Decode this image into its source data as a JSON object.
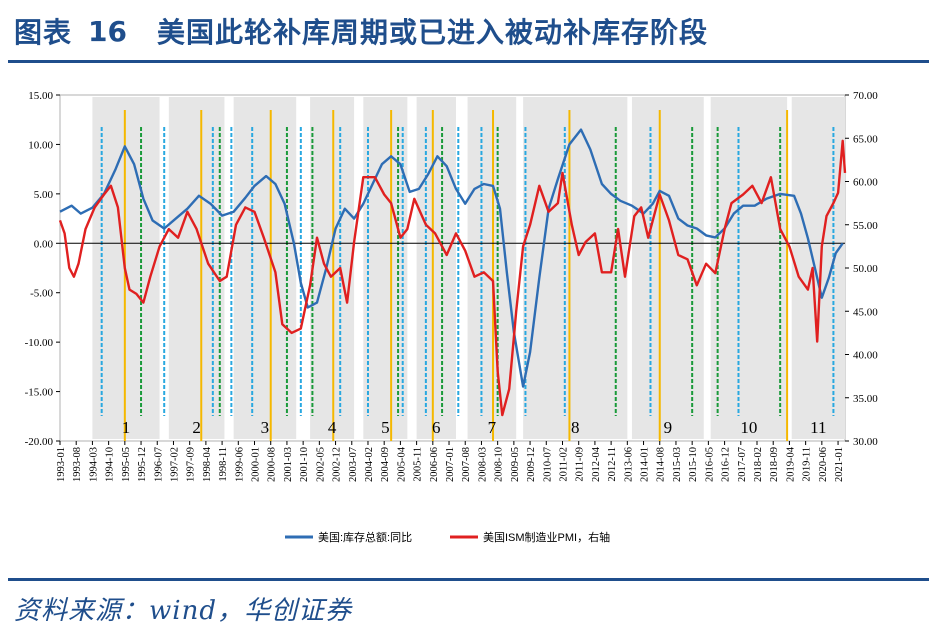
{
  "header": {
    "figure_label": "图表",
    "figure_number": "16",
    "title": "美国此轮补库周期或已进入被动补库存阶段"
  },
  "footer": {
    "source": "资料来源：wind，华创证券"
  },
  "colors": {
    "brand": "#1f4e8c",
    "inventory": "#2e6db4",
    "pmi": "#e02020",
    "cyan_line": "#29a8e0",
    "orange_line": "#f5b800",
    "green_line": "#1a9a3a",
    "shade": "#e6e6e6"
  },
  "chart_data": {
    "type": "line",
    "title": "",
    "x_start": "1993-01",
    "x_end": "2021-04",
    "x_tick_labels": [
      "1993-01",
      "1993-08",
      "1994-03",
      "1994-10",
      "1995-05",
      "1995-12",
      "1996-07",
      "1997-02",
      "1997-09",
      "1998-04",
      "1998-11",
      "1999-06",
      "2000-01",
      "2000-08",
      "2001-03",
      "2001-10",
      "2002-05",
      "2002-12",
      "2003-07",
      "2004-02",
      "2004-09",
      "2005-04",
      "2005-11",
      "2006-06",
      "2007-01",
      "2007-08",
      "2008-03",
      "2008-10",
      "2009-05",
      "2009-12",
      "2010-07",
      "2011-02",
      "2011-09",
      "2012-04",
      "2012-11",
      "2013-06",
      "2014-01",
      "2014-08",
      "2015-03",
      "2015-10",
      "2016-05",
      "2016-12",
      "2017-07",
      "2018-02",
      "2018-09",
      "2019-04",
      "2019-11",
      "2020-06",
      "2021-01"
    ],
    "y_left": {
      "min": -20,
      "max": 15,
      "ticks": [
        "15.00",
        "10.00",
        "5.00",
        "0.00",
        "-5.00",
        "-10.00",
        "-15.00",
        "-20.00"
      ]
    },
    "y_right": {
      "min": 30,
      "max": 70,
      "ticks": [
        "70.00",
        "65.00",
        "60.00",
        "55.00",
        "50.00",
        "45.00",
        "40.00",
        "35.00",
        "30.00"
      ]
    },
    "legend": {
      "placement": "bottom-center"
    },
    "series": [
      {
        "name": "美国:库存总额:同比",
        "axis": "left",
        "points": [
          [
            "1993-01",
            3.2
          ],
          [
            "1993-06",
            3.8
          ],
          [
            "1993-10",
            3.0
          ],
          [
            "1994-03",
            3.6
          ],
          [
            "1994-08",
            5.0
          ],
          [
            "1995-01",
            7.5
          ],
          [
            "1995-05",
            9.8
          ],
          [
            "1995-09",
            8.0
          ],
          [
            "1996-01",
            4.5
          ],
          [
            "1996-05",
            2.3
          ],
          [
            "1996-10",
            1.5
          ],
          [
            "1997-03",
            2.5
          ],
          [
            "1997-08",
            3.5
          ],
          [
            "1998-01",
            4.8
          ],
          [
            "1998-06",
            4.0
          ],
          [
            "1998-11",
            2.8
          ],
          [
            "1999-04",
            3.2
          ],
          [
            "1999-09",
            4.6
          ],
          [
            "2000-01",
            5.8
          ],
          [
            "2000-06",
            6.8
          ],
          [
            "2000-10",
            6.0
          ],
          [
            "2001-02",
            4.0
          ],
          [
            "2001-06",
            0.0
          ],
          [
            "2001-09",
            -4.0
          ],
          [
            "2001-12",
            -6.5
          ],
          [
            "2002-04",
            -6.0
          ],
          [
            "2002-08",
            -2.5
          ],
          [
            "2002-12",
            1.5
          ],
          [
            "2003-04",
            3.5
          ],
          [
            "2003-08",
            2.5
          ],
          [
            "2003-12",
            4.0
          ],
          [
            "2004-04",
            6.0
          ],
          [
            "2004-08",
            8.0
          ],
          [
            "2004-12",
            8.8
          ],
          [
            "2005-04",
            8.0
          ],
          [
            "2005-08",
            5.2
          ],
          [
            "2005-12",
            5.5
          ],
          [
            "2006-04",
            7.0
          ],
          [
            "2006-08",
            8.8
          ],
          [
            "2006-12",
            7.8
          ],
          [
            "2007-04",
            5.5
          ],
          [
            "2007-08",
            4.0
          ],
          [
            "2007-12",
            5.5
          ],
          [
            "2008-04",
            6.0
          ],
          [
            "2008-08",
            5.8
          ],
          [
            "2008-11",
            3.5
          ],
          [
            "2009-02",
            -3.0
          ],
          [
            "2009-05",
            -9.0
          ],
          [
            "2009-09",
            -14.5
          ],
          [
            "2009-12",
            -11.0
          ],
          [
            "2010-04",
            -3.5
          ],
          [
            "2010-08",
            3.5
          ],
          [
            "2010-12",
            6.5
          ],
          [
            "2011-05",
            10.0
          ],
          [
            "2011-10",
            11.5
          ],
          [
            "2012-02",
            9.5
          ],
          [
            "2012-07",
            6.0
          ],
          [
            "2012-11",
            5.0
          ],
          [
            "2013-03",
            4.3
          ],
          [
            "2013-08",
            3.8
          ],
          [
            "2014-01",
            3.0
          ],
          [
            "2014-05",
            4.0
          ],
          [
            "2014-08",
            5.3
          ],
          [
            "2014-12",
            4.8
          ],
          [
            "2015-04",
            2.5
          ],
          [
            "2015-08",
            1.8
          ],
          [
            "2015-12",
            1.5
          ],
          [
            "2016-04",
            0.8
          ],
          [
            "2016-08",
            0.6
          ],
          [
            "2016-12",
            1.5
          ],
          [
            "2017-04",
            3.0
          ],
          [
            "2017-08",
            3.8
          ],
          [
            "2018-01",
            3.8
          ],
          [
            "2018-06",
            4.5
          ],
          [
            "2018-12",
            5.0
          ],
          [
            "2019-06",
            4.8
          ],
          [
            "2019-09",
            3.0
          ],
          [
            "2019-12",
            0.5
          ],
          [
            "2020-03",
            -2.5
          ],
          [
            "2020-06",
            -5.5
          ],
          [
            "2020-09",
            -3.5
          ],
          [
            "2020-12",
            -1.0
          ],
          [
            "2021-03",
            0.0
          ]
        ]
      },
      {
        "name": "美国ISM制造业PMI，右轴",
        "axis": "right",
        "points": [
          [
            "1993-01",
            55.5
          ],
          [
            "1993-03",
            54.0
          ],
          [
            "1993-05",
            50.0
          ],
          [
            "1993-07",
            49.0
          ],
          [
            "1993-09",
            50.5
          ],
          [
            "1993-12",
            54.5
          ],
          [
            "1994-04",
            57.0
          ],
          [
            "1994-08",
            58.5
          ],
          [
            "1994-11",
            59.5
          ],
          [
            "1995-02",
            57.0
          ],
          [
            "1995-05",
            50.0
          ],
          [
            "1995-07",
            47.5
          ],
          [
            "1995-10",
            47.0
          ],
          [
            "1996-01",
            46.0
          ],
          [
            "1996-04",
            49.0
          ],
          [
            "1996-08",
            52.5
          ],
          [
            "1996-12",
            54.5
          ],
          [
            "1997-04",
            53.5
          ],
          [
            "1997-08",
            56.5
          ],
          [
            "1997-12",
            54.5
          ],
          [
            "1998-05",
            50.5
          ],
          [
            "1998-10",
            48.5
          ],
          [
            "1999-01",
            49.0
          ],
          [
            "1999-05",
            55.0
          ],
          [
            "1999-09",
            57.0
          ],
          [
            "2000-01",
            56.5
          ],
          [
            "2000-05",
            53.5
          ],
          [
            "2000-10",
            49.5
          ],
          [
            "2001-01",
            43.5
          ],
          [
            "2001-05",
            42.5
          ],
          [
            "2001-09",
            43.0
          ],
          [
            "2002-01",
            48.0
          ],
          [
            "2002-04",
            53.5
          ],
          [
            "2002-07",
            50.5
          ],
          [
            "2002-10",
            49.0
          ],
          [
            "2003-02",
            50.0
          ],
          [
            "2003-05",
            46.0
          ],
          [
            "2003-08",
            53.0
          ],
          [
            "2003-12",
            60.5
          ],
          [
            "2004-05",
            60.5
          ],
          [
            "2004-09",
            58.5
          ],
          [
            "2004-12",
            57.5
          ],
          [
            "2005-04",
            53.5
          ],
          [
            "2005-07",
            54.5
          ],
          [
            "2005-10",
            58.0
          ],
          [
            "2006-03",
            55.0
          ],
          [
            "2006-07",
            54.0
          ],
          [
            "2006-12",
            51.5
          ],
          [
            "2007-04",
            54.0
          ],
          [
            "2007-08",
            52.0
          ],
          [
            "2007-12",
            49.0
          ],
          [
            "2008-04",
            49.5
          ],
          [
            "2008-08",
            48.5
          ],
          [
            "2008-10",
            38.0
          ],
          [
            "2008-12",
            33.0
          ],
          [
            "2009-03",
            36.0
          ],
          [
            "2009-06",
            45.0
          ],
          [
            "2009-09",
            52.5
          ],
          [
            "2009-12",
            55.0
          ],
          [
            "2010-04",
            59.5
          ],
          [
            "2010-08",
            56.5
          ],
          [
            "2010-12",
            57.5
          ],
          [
            "2011-02",
            61.0
          ],
          [
            "2011-06",
            55.0
          ],
          [
            "2011-09",
            51.5
          ],
          [
            "2011-12",
            53.0
          ],
          [
            "2012-04",
            54.0
          ],
          [
            "2012-07",
            49.5
          ],
          [
            "2012-11",
            49.5
          ],
          [
            "2013-02",
            54.5
          ],
          [
            "2013-05",
            49.0
          ],
          [
            "2013-09",
            56.0
          ],
          [
            "2013-12",
            57.0
          ],
          [
            "2014-03",
            53.5
          ],
          [
            "2014-08",
            58.5
          ],
          [
            "2014-12",
            55.5
          ],
          [
            "2015-04",
            51.5
          ],
          [
            "2015-08",
            51.0
          ],
          [
            "2015-12",
            48.0
          ],
          [
            "2016-04",
            50.5
          ],
          [
            "2016-08",
            49.4
          ],
          [
            "2016-12",
            54.5
          ],
          [
            "2017-03",
            57.5
          ],
          [
            "2017-08",
            58.5
          ],
          [
            "2017-12",
            59.5
          ],
          [
            "2018-04",
            57.5
          ],
          [
            "2018-08",
            60.5
          ],
          [
            "2018-12",
            54.5
          ],
          [
            "2019-04",
            52.5
          ],
          [
            "2019-08",
            49.0
          ],
          [
            "2019-12",
            47.5
          ],
          [
            "2020-02",
            50.0
          ],
          [
            "2020-04",
            41.5
          ],
          [
            "2020-06",
            52.5
          ],
          [
            "2020-08",
            56.0
          ],
          [
            "2020-11",
            57.5
          ],
          [
            "2021-01",
            58.7
          ],
          [
            "2021-03",
            64.7
          ],
          [
            "2021-04",
            61.0
          ]
        ]
      }
    ],
    "phases": [
      {
        "label": "1",
        "start": "1994-03",
        "end": "1996-08"
      },
      {
        "label": "2",
        "start": "1996-12",
        "end": "1998-12"
      },
      {
        "label": "3",
        "start": "1999-04",
        "end": "2001-07"
      },
      {
        "label": "4",
        "start": "2002-01",
        "end": "2003-08"
      },
      {
        "label": "5",
        "start": "2003-12",
        "end": "2005-07"
      },
      {
        "label": "6",
        "start": "2005-11",
        "end": "2007-04"
      },
      {
        "label": "7",
        "start": "2007-09",
        "end": "2009-06"
      },
      {
        "label": "8",
        "start": "2009-09",
        "end": "2013-06"
      },
      {
        "label": "9",
        "start": "2013-08",
        "end": "2016-03"
      },
      {
        "label": "10",
        "start": "2016-06",
        "end": "2019-03"
      },
      {
        "label": "11",
        "start": "2019-05",
        "end": "2021-04"
      }
    ],
    "cyan_lines": [
      "1994-07",
      "1996-10",
      "1998-07",
      "1999-03",
      "1999-12",
      "2001-09",
      "2003-02",
      "2004-02",
      "2005-05",
      "2006-03",
      "2007-05",
      "2008-03",
      "2009-10",
      "2011-03",
      "2014-04",
      "2017-06",
      "2020-11"
    ],
    "orange_lines": [
      "1995-05",
      "1998-02",
      "2000-08",
      "2002-11",
      "2004-12",
      "2006-06",
      "2008-08",
      "2011-05",
      "2014-08",
      "2019-03"
    ],
    "green_lines": [
      "1995-12",
      "1998-10",
      "2001-03",
      "2002-02",
      "2005-03",
      "2006-10",
      "2008-10",
      "2013-01",
      "2015-10",
      "2016-09",
      "2018-12"
    ]
  }
}
